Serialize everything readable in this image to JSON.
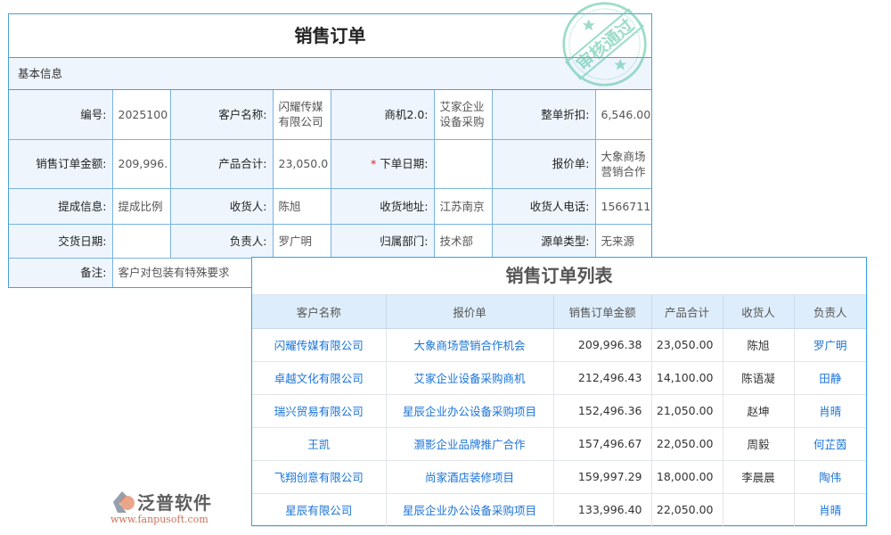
{
  "form": {
    "title": "销售订单",
    "section": "基本信息",
    "rows": [
      [
        {
          "label": "编号:",
          "value": "2025100"
        },
        {
          "label": "客户名称:",
          "value": "闪耀传媒有限公司"
        },
        {
          "label": "商机2.0:",
          "value": "艾家企业设备采购"
        },
        {
          "label": "整单折扣:",
          "value": "6,546.00"
        }
      ],
      [
        {
          "label": "销售订单金额:",
          "value": "209,996."
        },
        {
          "label": "产品合计:",
          "value": "23,050.0"
        },
        {
          "label": "下单日期:",
          "value": "",
          "required": "*"
        },
        {
          "label": "报价单:",
          "value": "大象商场营销合作"
        }
      ],
      [
        {
          "label": "提成信息:",
          "value": "提成比例"
        },
        {
          "label": "收货人:",
          "value": "陈旭"
        },
        {
          "label": "收货地址:",
          "value": "江苏南京"
        },
        {
          "label": "收货人电话:",
          "value": "1566711"
        }
      ],
      [
        {
          "label": "交货日期:",
          "value": ""
        },
        {
          "label": "负责人:",
          "value": "罗广明"
        },
        {
          "label": "归属部门:",
          "value": "技术部"
        },
        {
          "label": "源单类型:",
          "value": "无来源"
        }
      ]
    ],
    "remark": {
      "label": "备注:",
      "value": "客户对包装有特殊要求"
    },
    "stamp_text": "审核通过",
    "stamp_color": "#5cc6a8"
  },
  "list": {
    "title": "销售订单列表",
    "headers": [
      "客户名称",
      "报价单",
      "销售订单金额",
      "产品合计",
      "收货人",
      "负责人"
    ],
    "rows": [
      [
        "闪耀传媒有限公司",
        "大象商场营销合作机会",
        "209,996.38",
        "23,050.00",
        "陈旭",
        "罗广明"
      ],
      [
        "卓越文化有限公司",
        "艾家企业设备采购商机",
        "212,496.43",
        "14,100.00",
        "陈语凝",
        "田静"
      ],
      [
        "瑞兴贸易有限公司",
        "星辰企业办公设备采购项目",
        "152,496.36",
        "21,050.00",
        "赵坤",
        "肖晴"
      ],
      [
        "王凯",
        "灏影企业品牌推广合作",
        "157,496.67",
        "22,050.00",
        "周毅",
        "何芷茵"
      ],
      [
        "飞翔创意有限公司",
        "尚家酒店装修项目",
        "159,997.29",
        "18,000.00",
        "李晨晨",
        "陶伟"
      ],
      [
        "星辰有限公司",
        "星辰企业办公设备采购项目",
        "133,996.40",
        "22,050.00",
        "",
        "肖晴"
      ]
    ]
  },
  "watermark": {
    "brand": "泛普软件",
    "url": "www.fanpusoft.com"
  }
}
